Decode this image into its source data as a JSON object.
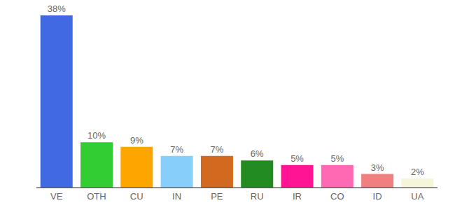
{
  "chart_data": {
    "type": "bar",
    "categories": [
      "VE",
      "OTH",
      "CU",
      "IN",
      "PE",
      "RU",
      "IR",
      "CO",
      "ID",
      "UA"
    ],
    "values": [
      38,
      10,
      9,
      7,
      7,
      6,
      5,
      5,
      3,
      2
    ],
    "value_labels": [
      "38%",
      "10%",
      "9%",
      "7%",
      "7%",
      "6%",
      "5%",
      "5%",
      "3%",
      "2%"
    ],
    "colors": [
      "#4169e1",
      "#32cd32",
      "#ffa500",
      "#87cefa",
      "#d2691e",
      "#228b22",
      "#ff1493",
      "#ff69b4",
      "#f08080",
      "#f5f5dc"
    ],
    "ylim": [
      0,
      38
    ],
    "data_labels": true,
    "tick_labels": "x",
    "grid": false
  }
}
